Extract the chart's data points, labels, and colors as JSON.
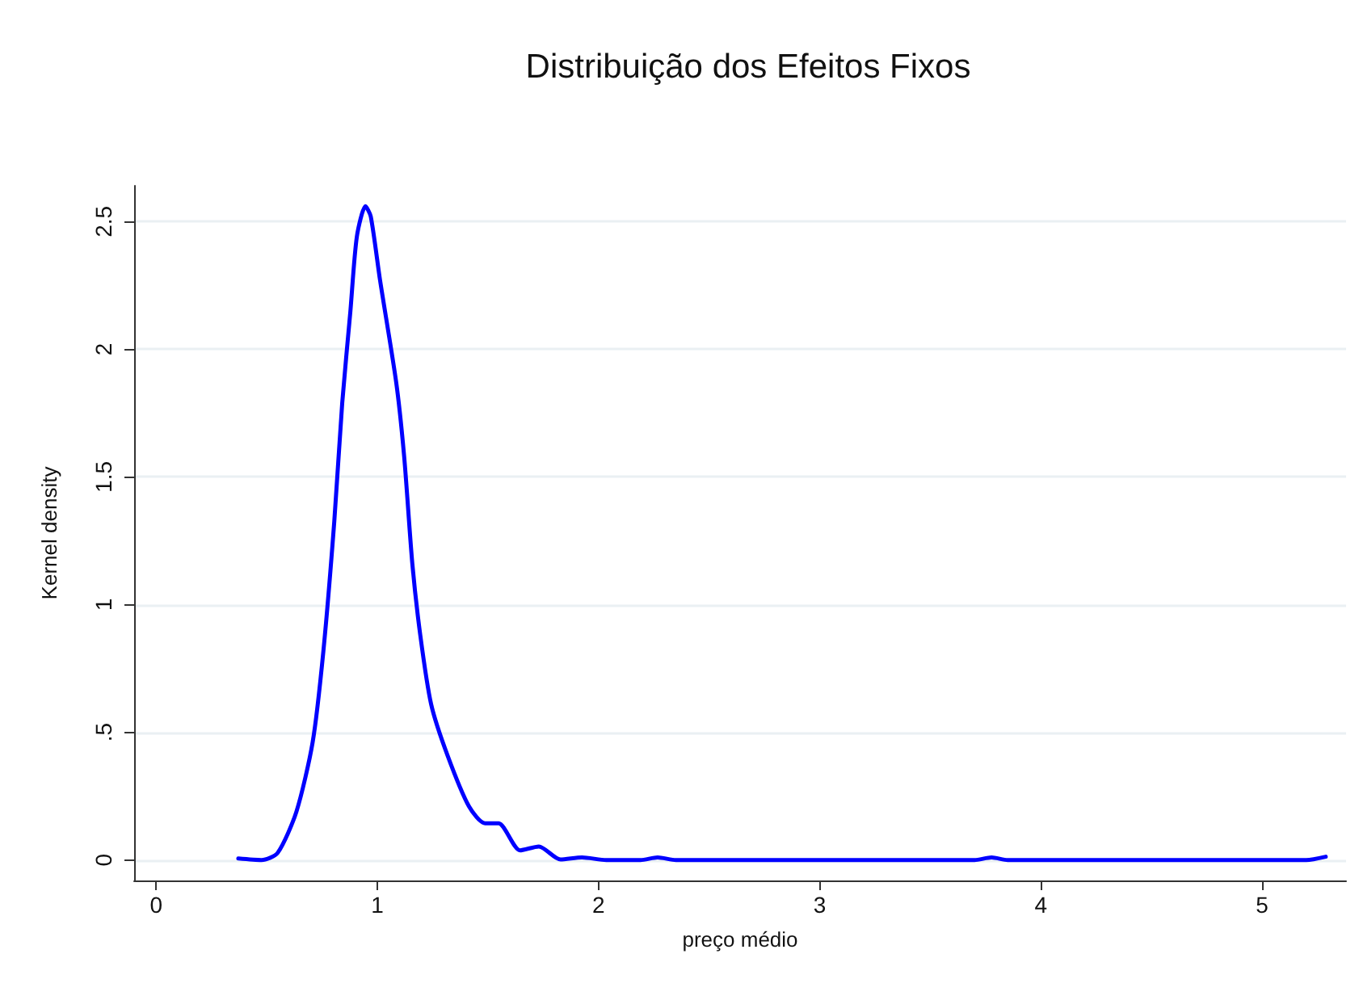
{
  "chart_data": {
    "type": "line",
    "title": "Distribuição dos Efeitos Fixos",
    "xlabel": "preço médio",
    "ylabel": "Kernel density",
    "series": [
      {
        "color": "#0000ff",
        "x": [
          0.371,
          0.476,
          0.549,
          0.634,
          0.707,
          0.756,
          0.805,
          0.841,
          0.878,
          0.907,
          0.946,
          0.97,
          1.012,
          1.085,
          1.121,
          1.158,
          1.194,
          1.243,
          1.317,
          1.414,
          1.487,
          1.548,
          1.645,
          1.73,
          1.828,
          1.925,
          2.035,
          2.19,
          2.267,
          2.35,
          3.7,
          3.777,
          3.85,
          5.2,
          5.288
        ],
        "values": [
          0.006,
          0,
          0.028,
          0.19,
          0.46,
          0.82,
          1.325,
          1.79,
          2.15,
          2.44,
          2.56,
          2.52,
          2.27,
          1.87,
          1.58,
          1.16,
          0.88,
          0.61,
          0.41,
          0.21,
          0.144,
          0.144,
          0.038,
          0.053,
          0.002,
          0.01,
          0,
          0,
          0.01,
          0,
          0,
          0.01,
          0,
          0,
          0.013
        ]
      }
    ],
    "xlim": [
      -0.1,
      5.38
    ],
    "xticks": [
      0,
      1,
      2,
      3,
      4,
      5
    ],
    "ylim": [
      -0.08,
      2.64
    ],
    "yticks": [
      0,
      {
        "value": 0.5,
        "label": ".5"
      },
      1,
      1.5,
      2,
      2.5
    ],
    "grid": "y",
    "line_style": "solid",
    "marker": "none"
  }
}
